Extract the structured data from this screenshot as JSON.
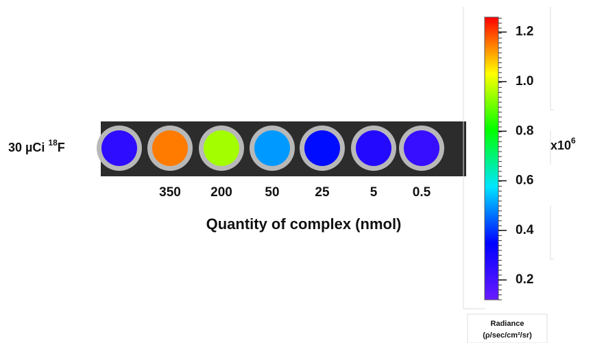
{
  "chart_data": {
    "type": "well-image",
    "row_label": {
      "text": "30 µCi ",
      "superscript": "18",
      "suffix": "F"
    },
    "categories": [
      null,
      "350",
      "200",
      "50",
      "25",
      "5",
      "0.5"
    ],
    "values": [
      0.25,
      1.15,
      0.95,
      0.5,
      0.36,
      0.27,
      0.23
    ],
    "x_label": "Quantity of complex (nmol)",
    "colormap": [
      "#6a1bff",
      "#0000ff",
      "#00e5ff",
      "#00ff00",
      "#ffff00",
      "#ff0000"
    ],
    "clim": [
      0.12,
      1.26
    ],
    "cticks": [
      0.2,
      0.4,
      0.6,
      0.8,
      {
        "value": 1.0,
        "label": "1.0"
      },
      1.2
    ],
    "multiplier": {
      "base": "x10",
      "exponent": "6"
    },
    "colorbar_title": "Radiance",
    "colorbar_unit": "(ρ/sec/cm²/sr)"
  }
}
